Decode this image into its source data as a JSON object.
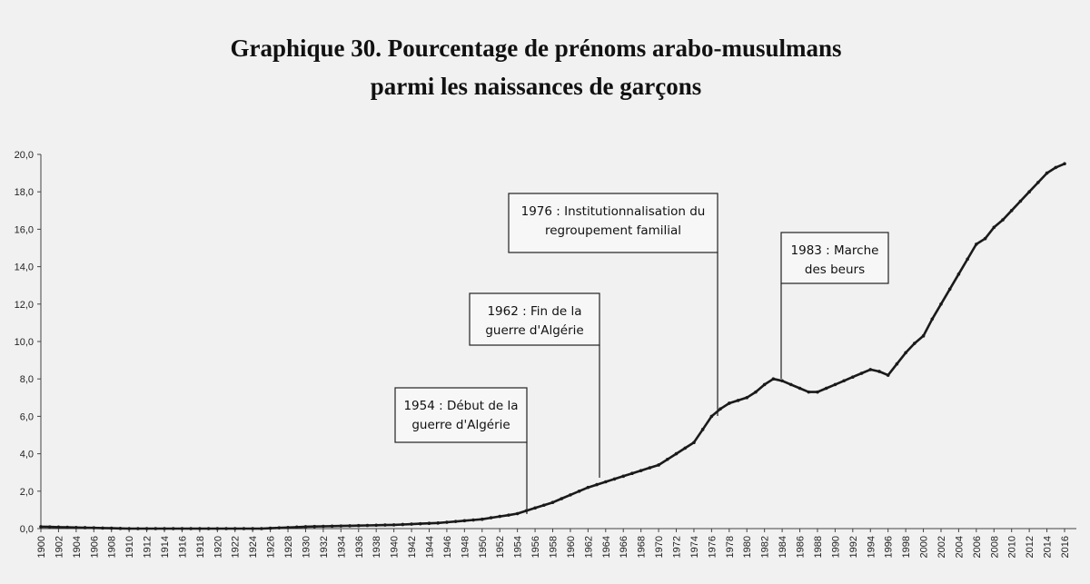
{
  "chart_data": {
    "type": "line",
    "title_lines": [
      "Graphique 30. Pourcentage de prénoms arabo-musulmans",
      "parmi les naissances de garçons"
    ],
    "x": [
      1900,
      1901,
      1902,
      1903,
      1904,
      1905,
      1906,
      1907,
      1908,
      1909,
      1910,
      1911,
      1912,
      1913,
      1914,
      1915,
      1916,
      1917,
      1918,
      1919,
      1920,
      1921,
      1922,
      1923,
      1924,
      1925,
      1926,
      1927,
      1928,
      1929,
      1930,
      1931,
      1932,
      1933,
      1934,
      1935,
      1936,
      1937,
      1938,
      1939,
      1940,
      1941,
      1942,
      1943,
      1944,
      1945,
      1946,
      1947,
      1948,
      1949,
      1950,
      1951,
      1952,
      1953,
      1954,
      1955,
      1956,
      1957,
      1958,
      1959,
      1960,
      1961,
      1962,
      1963,
      1964,
      1965,
      1966,
      1967,
      1968,
      1969,
      1970,
      1971,
      1972,
      1973,
      1974,
      1975,
      1976,
      1977,
      1978,
      1979,
      1980,
      1981,
      1982,
      1983,
      1984,
      1985,
      1986,
      1987,
      1988,
      1989,
      1990,
      1991,
      1992,
      1993,
      1994,
      1995,
      1996,
      1997,
      1998,
      1999,
      2000,
      2001,
      2002,
      2003,
      2004,
      2005,
      2006,
      2007,
      2008,
      2009,
      2010,
      2011,
      2012,
      2013,
      2014,
      2015,
      2016
    ],
    "values": [
      0.1,
      0.09,
      0.08,
      0.07,
      0.06,
      0.05,
      0.04,
      0.03,
      0.02,
      0.01,
      0,
      0,
      0,
      0,
      0,
      0,
      0,
      0,
      0,
      0,
      0,
      0,
      0,
      0,
      0,
      0,
      0.02,
      0.04,
      0.06,
      0.08,
      0.1,
      0.11,
      0.12,
      0.13,
      0.14,
      0.15,
      0.16,
      0.17,
      0.18,
      0.19,
      0.2,
      0.22,
      0.24,
      0.26,
      0.28,
      0.3,
      0.34,
      0.38,
      0.42,
      0.46,
      0.5,
      0.58,
      0.65,
      0.72,
      0.8,
      0.95,
      1.1,
      1.25,
      1.4,
      1.6,
      1.8,
      2.0,
      2.2,
      2.35,
      2.5,
      2.65,
      2.8,
      2.95,
      3.1,
      3.25,
      3.4,
      3.7,
      4.0,
      4.3,
      4.6,
      5.3,
      6.0,
      6.4,
      6.7,
      6.85,
      7.0,
      7.3,
      7.7,
      8.0,
      7.9,
      7.7,
      7.5,
      7.3,
      7.3,
      7.5,
      7.7,
      7.9,
      8.1,
      8.3,
      8.5,
      8.4,
      8.2,
      8.8,
      9.4,
      9.9,
      10.3,
      11.2,
      12.0,
      12.8,
      13.6,
      14.4,
      15.2,
      15.5,
      16.1,
      16.5,
      17.0,
      17.5,
      18.0,
      18.5,
      19.0,
      19.3,
      19.5
    ],
    "color": "#1a1a1a",
    "xlim": [
      1900,
      2016
    ],
    "xticks": [
      1900,
      1902,
      1904,
      1906,
      1908,
      1910,
      1912,
      1914,
      1916,
      1918,
      1920,
      1922,
      1924,
      1926,
      1928,
      1930,
      1932,
      1934,
      1936,
      1938,
      1940,
      1942,
      1944,
      1946,
      1948,
      1950,
      1952,
      1954,
      1956,
      1958,
      1960,
      1962,
      1964,
      1966,
      1968,
      1970,
      1972,
      1974,
      1976,
      1978,
      1980,
      1982,
      1984,
      1986,
      1988,
      1990,
      1992,
      1994,
      1996,
      1998,
      2000,
      2002,
      2004,
      2006,
      2008,
      2010,
      2012,
      2014,
      2016
    ],
    "ylim": [
      0,
      20
    ],
    "yticks": [
      {
        "value": 0,
        "label": "0,0"
      },
      {
        "value": 2,
        "label": "2,0"
      },
      {
        "value": 4,
        "label": "4,0"
      },
      {
        "value": 6,
        "label": "6,0"
      },
      {
        "value": 8,
        "label": "8,0"
      },
      {
        "value": 10,
        "label": "10,0"
      },
      {
        "value": 12,
        "label": "12,0"
      },
      {
        "value": 14,
        "label": "14,0"
      },
      {
        "value": 16,
        "label": "16,0"
      },
      {
        "value": 18,
        "label": "18,0"
      },
      {
        "value": 20,
        "label": "20,0"
      }
    ],
    "annotations": [
      {
        "lines": [
          "1954 : Début de la",
          "guerre d'Algérie"
        ]
      },
      {
        "lines": [
          "1962 : Fin de la",
          "guerre d'Algérie"
        ]
      },
      {
        "lines": [
          "1976 : Institutionnalisation du",
          "regroupement familial"
        ]
      },
      {
        "lines": [
          "1983 : Marche",
          "des beurs"
        ]
      }
    ]
  }
}
